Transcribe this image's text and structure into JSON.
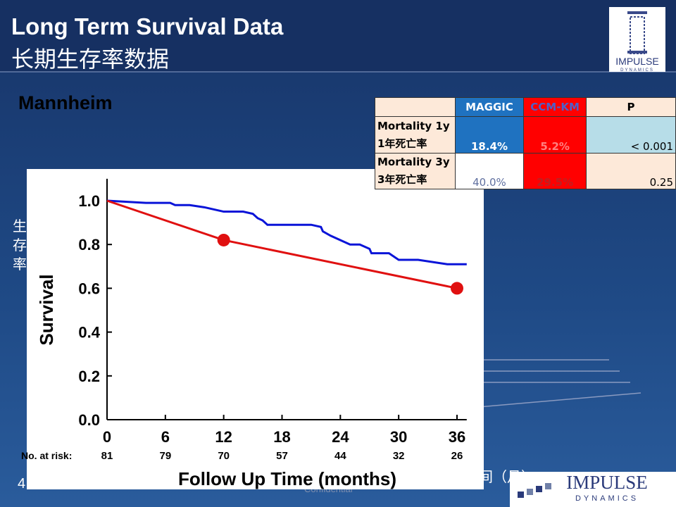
{
  "header": {
    "title": "Long Term Survival Data",
    "subtitle": "长期生存率数据",
    "logo": [
      "IMPULSE",
      "DYNAMICS"
    ]
  },
  "section": "Mannheim",
  "side_label": [
    "生",
    "存",
    "率"
  ],
  "page_number": "4",
  "bottom_fragment": "间（月）",
  "footer": "Confidential",
  "footer_logo": [
    "IMPULSE",
    "DYNAMICS"
  ],
  "table": {
    "header": [
      "MAGGIC",
      "CCM-KM",
      "P"
    ],
    "rows": [
      {
        "label": [
          "Mortality 1y",
          "1年死亡率"
        ],
        "cells": [
          "18.4%",
          "5.2%",
          "< 0.001"
        ]
      },
      {
        "label": [
          "Mortality 3y",
          "3年死亡率"
        ],
        "cells": [
          "40.0%",
          "29.5%",
          "0.25"
        ]
      }
    ]
  },
  "chart_data": {
    "type": "line",
    "y_label": "Survival",
    "x_label": "Follow Up Time (months)",
    "xlim": [
      0,
      37
    ],
    "xticks": [
      0,
      6,
      12,
      18,
      24,
      30,
      36
    ],
    "ylim": [
      0,
      1.1
    ],
    "yticks": [
      {
        "value": 0,
        "label": "0.0"
      },
      {
        "value": 0.2,
        "label": "0.2"
      },
      {
        "value": 0.4,
        "label": "0.4"
      },
      {
        "value": 0.6,
        "label": "0.6"
      },
      {
        "value": 0.8,
        "label": "0.8"
      },
      {
        "value": 1,
        "label": "1.0"
      }
    ],
    "at_risk_label": "No. at risk:",
    "at_risk": [
      81,
      79,
      70,
      57,
      44,
      32,
      26
    ],
    "series": [
      {
        "color": "#0a14d8",
        "x": [
          0,
          4,
          6.5,
          7,
          8.5,
          10,
          11,
          12,
          14,
          15,
          15.5,
          16,
          16.5,
          21,
          22,
          22.2,
          23,
          25,
          26,
          27,
          27.2,
          29,
          30,
          32,
          35,
          37
        ],
        "values": [
          1.0,
          0.99,
          0.99,
          0.98,
          0.98,
          0.97,
          0.96,
          0.95,
          0.95,
          0.94,
          0.92,
          0.91,
          0.89,
          0.89,
          0.88,
          0.86,
          0.84,
          0.8,
          0.8,
          0.78,
          0.76,
          0.76,
          0.73,
          0.73,
          0.71,
          0.71
        ]
      },
      {
        "color": "#e01010",
        "x": [
          0,
          12,
          36
        ],
        "values": [
          1.0,
          0.82,
          0.6
        ],
        "marker": [
          false,
          true,
          true
        ]
      }
    ]
  }
}
